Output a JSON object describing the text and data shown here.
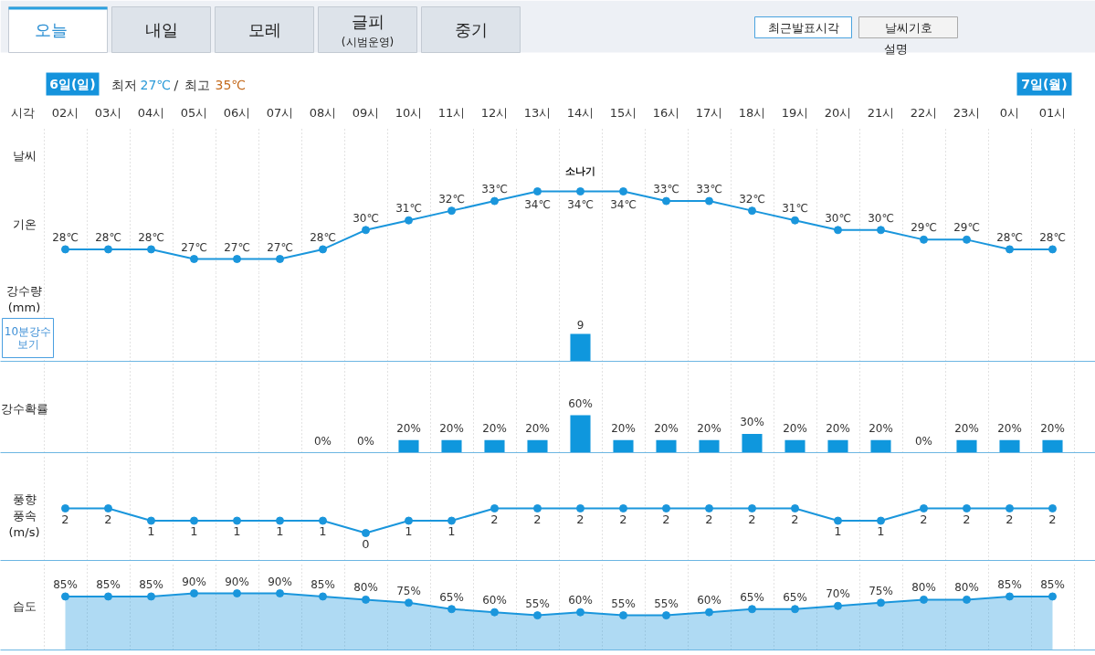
{
  "chart_data": [
    {
      "type": "other",
      "annotations": [
        "오늘",
        "내일",
        "모레",
        "글피 (시범운영)",
        "중기",
        "최근발표시각",
        "날씨기호 설명",
        "6일(일)",
        "최저",
        "27℃",
        "/",
        "최고",
        "35℃",
        "7일(월)"
      ]
    },
    {
      "type": "line",
      "xlabel": "시각",
      "ylabel": "기온",
      "categories": [
        "02시",
        "03시",
        "04시",
        "05시",
        "06시",
        "07시",
        "08시",
        "09시",
        "10시",
        "11시",
        "12시",
        "13시",
        "14시",
        "15시",
        "16시",
        "17시",
        "18시",
        "19시",
        "20시",
        "21시",
        "22시",
        "23시",
        "0시",
        "01시"
      ],
      "tick_labels": "x",
      "grid": "x",
      "marker": "circle",
      "color": "#1a96dc",
      "values": [
        28,
        28,
        28,
        27,
        27,
        27,
        28,
        30,
        31,
        32,
        33,
        34,
        34,
        34,
        33,
        33,
        32,
        31,
        30,
        30,
        29,
        29,
        28,
        28
      ],
      "value_labels": [
        "28℃",
        "28℃",
        "28℃",
        "27℃",
        "27℃",
        "27℃",
        "28℃",
        "30℃",
        "31℃",
        "32℃",
        "33℃",
        "34℃",
        "34℃",
        "34℃",
        "33℃",
        "33℃",
        "32℃",
        "31℃",
        "30℃",
        "30℃",
        "29℃",
        "29℃",
        "28℃",
        "28℃"
      ],
      "annotations": [
        "날씨",
        "소나기"
      ]
    },
    {
      "type": "bar",
      "ylabel": "강수량 (mm)",
      "categories": [
        "02시",
        "03시",
        "04시",
        "05시",
        "06시",
        "07시",
        "08시",
        "09시",
        "10시",
        "11시",
        "12시",
        "13시",
        "14시",
        "15시",
        "16시",
        "17시",
        "18시",
        "19시",
        "20시",
        "21시",
        "22시",
        "23시",
        "0시",
        "01시"
      ],
      "tick_labels": false,
      "grid": "x",
      "color": "#0f97dd",
      "values": [
        null,
        null,
        null,
        null,
        null,
        null,
        null,
        null,
        null,
        null,
        null,
        null,
        9,
        null,
        null,
        null,
        null,
        null,
        null,
        null,
        null,
        null,
        null,
        null
      ],
      "data_labels": true,
      "annotations": [
        "10분강수 보기"
      ]
    },
    {
      "type": "bar",
      "ylabel": "강수확률",
      "categories": [
        "02시",
        "03시",
        "04시",
        "05시",
        "06시",
        "07시",
        "08시",
        "09시",
        "10시",
        "11시",
        "12시",
        "13시",
        "14시",
        "15시",
        "16시",
        "17시",
        "18시",
        "19시",
        "20시",
        "21시",
        "22시",
        "23시",
        "0시",
        "01시"
      ],
      "tick_labels": false,
      "grid": "x",
      "color": "#0f97dd",
      "values": [
        null,
        null,
        null,
        null,
        null,
        null,
        0,
        0,
        20,
        20,
        20,
        20,
        60,
        20,
        20,
        20,
        30,
        20,
        20,
        20,
        0,
        20,
        20,
        20
      ],
      "value_labels": [
        null,
        null,
        null,
        null,
        null,
        null,
        "0%",
        "0%",
        "20%",
        "20%",
        "20%",
        "20%",
        "60%",
        "20%",
        "20%",
        "20%",
        "30%",
        "20%",
        "20%",
        "20%",
        "0%",
        "20%",
        "20%",
        "20%"
      ]
    },
    {
      "type": "line",
      "ylabel": "풍향 풍속 (m/s)",
      "categories": [
        "02시",
        "03시",
        "04시",
        "05시",
        "06시",
        "07시",
        "08시",
        "09시",
        "10시",
        "11시",
        "12시",
        "13시",
        "14시",
        "15시",
        "16시",
        "17시",
        "18시",
        "19시",
        "20시",
        "21시",
        "22시",
        "23시",
        "0시",
        "01시"
      ],
      "tick_labels": false,
      "grid": "x",
      "marker": "circle",
      "color": "#1a96dc",
      "values": [
        2,
        2,
        1,
        1,
        1,
        1,
        1,
        0,
        1,
        1,
        2,
        2,
        2,
        2,
        2,
        2,
        2,
        2,
        1,
        1,
        2,
        2,
        2,
        2
      ],
      "data_labels": true
    },
    {
      "type": "area",
      "ylabel": "습도",
      "categories": [
        "02시",
        "03시",
        "04시",
        "05시",
        "06시",
        "07시",
        "08시",
        "09시",
        "10시",
        "11시",
        "12시",
        "13시",
        "14시",
        "15시",
        "16시",
        "17시",
        "18시",
        "19시",
        "20시",
        "21시",
        "22시",
        "23시",
        "0시",
        "01시"
      ],
      "tick_labels": false,
      "grid": "x",
      "marker": "circle",
      "color": "#1a96dc",
      "values": [
        85,
        85,
        85,
        90,
        90,
        90,
        85,
        80,
        75,
        65,
        60,
        55,
        60,
        55,
        55,
        60,
        65,
        65,
        70,
        75,
        80,
        80,
        85,
        85
      ],
      "value_labels": [
        "85%",
        "85%",
        "85%",
        "90%",
        "90%",
        "90%",
        "85%",
        "80%",
        "75%",
        "65%",
        "60%",
        "55%",
        "60%",
        "55%",
        "55%",
        "60%",
        "65%",
        "65%",
        "70%",
        "75%",
        "80%",
        "80%",
        "85%",
        "85%"
      ]
    }
  ]
}
